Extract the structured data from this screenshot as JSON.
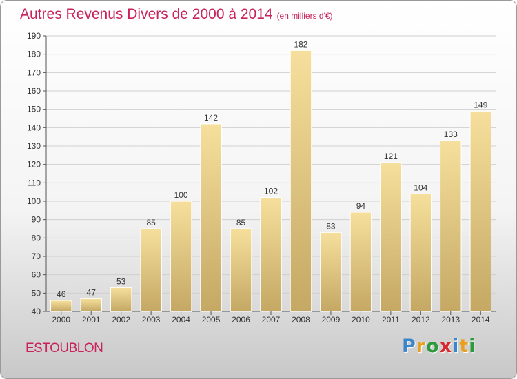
{
  "title": "Autres Revenus Divers de 2000 à 2014",
  "subtitle": "(en milliers d'€)",
  "location": "ESTOUBLON",
  "logo": {
    "letters": [
      "P",
      "r",
      "o",
      "x",
      "i",
      "t",
      "i"
    ],
    "colors": [
      "#3a86c8",
      "#e8a020",
      "#2e9a3e",
      "#d8282e",
      "#3a86c8",
      "#e8a020",
      "#2e9a3e"
    ]
  },
  "colors": {
    "bar_top": "#f6df9c",
    "bar_bottom": "#c4a864",
    "title": "#c8235a",
    "grid": "#d0d0d0"
  },
  "chart_data": {
    "type": "bar",
    "categories": [
      "2000",
      "2001",
      "2002",
      "2003",
      "2004",
      "2005",
      "2006",
      "2007",
      "2008",
      "2009",
      "2010",
      "2011",
      "2012",
      "2013",
      "2014"
    ],
    "values": [
      46,
      47,
      53,
      85,
      100,
      142,
      85,
      102,
      182,
      83,
      94,
      121,
      104,
      133,
      149
    ],
    "title": "Autres Revenus Divers de 2000 à 2014",
    "subtitle": "(en milliers d'€)",
    "xlabel": "",
    "ylabel": "",
    "ylim": [
      40,
      190
    ],
    "yticks": [
      40,
      50,
      60,
      70,
      80,
      90,
      100,
      110,
      120,
      130,
      140,
      150,
      160,
      170,
      180,
      190
    ],
    "grid": true,
    "legend": "none"
  }
}
